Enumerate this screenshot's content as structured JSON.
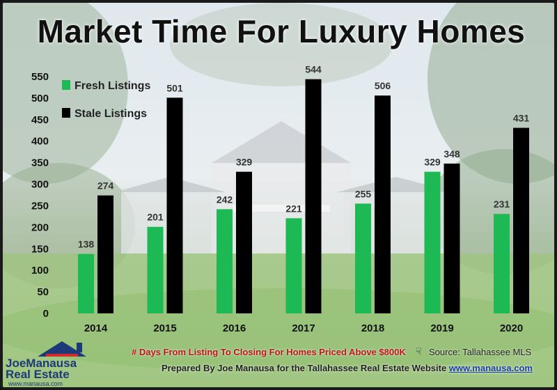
{
  "chart_data": {
    "type": "bar",
    "title": "Market Time For Luxury Homes",
    "categories": [
      "2014",
      "2015",
      "2016",
      "2017",
      "2018",
      "2019",
      "2020"
    ],
    "series": [
      {
        "name": "Fresh Listings",
        "color": "#1db954",
        "values": [
          138,
          201,
          242,
          221,
          255,
          329,
          231
        ]
      },
      {
        "name": "Stale Listings",
        "color": "#000000",
        "values": [
          274,
          501,
          329,
          544,
          506,
          348,
          431
        ]
      }
    ],
    "yticks": [
      "0",
      "50",
      "100",
      "150",
      "200",
      "250",
      "300",
      "350",
      "400",
      "450",
      "500",
      "550"
    ],
    "ylim": [
      0,
      550
    ],
    "legend_position": "top-left",
    "xlabel": "",
    "ylabel": ""
  },
  "footer": {
    "note": "# Days From Listing To Closing For Homes Priced Above $800K",
    "source": "Source: Tallahassee MLS",
    "prepared": "Prepared By Joe Manausa for the Tallahassee Real Estate Website",
    "website": "www.manausa.com"
  },
  "logo": {
    "line1": "JoeManausa",
    "line2": "Real Estate",
    "url": "www.manausa.com"
  }
}
